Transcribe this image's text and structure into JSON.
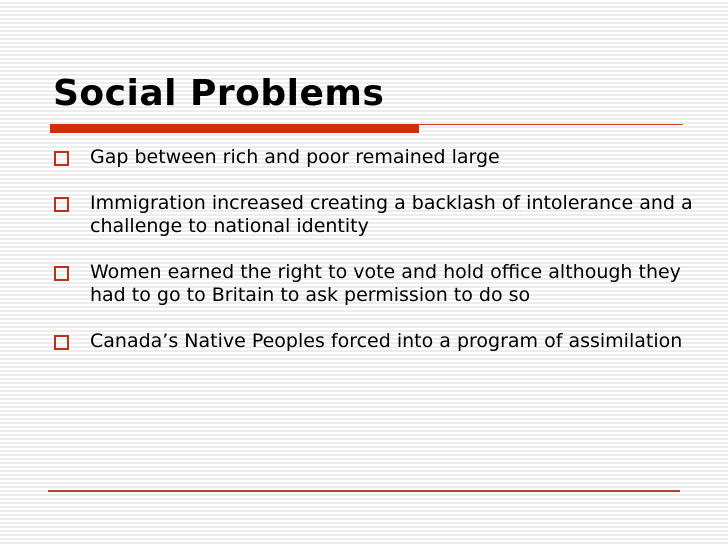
{
  "slide": {
    "title": "Social Problems",
    "bullets": [
      "Gap between rich and poor remained large",
      "Immigration increased creating a backlash of intolerance and a challenge to national identity",
      "Women earned the right to vote and hold office although they had to go to Britain to ask permission to do so",
      "Canada’s Native Peoples forced into a program of assimilation"
    ],
    "bullet_icon": "hollow-square",
    "colors": {
      "accent": "#d42a10",
      "bullet": "#b8321c",
      "rule": "#a84a36"
    }
  }
}
